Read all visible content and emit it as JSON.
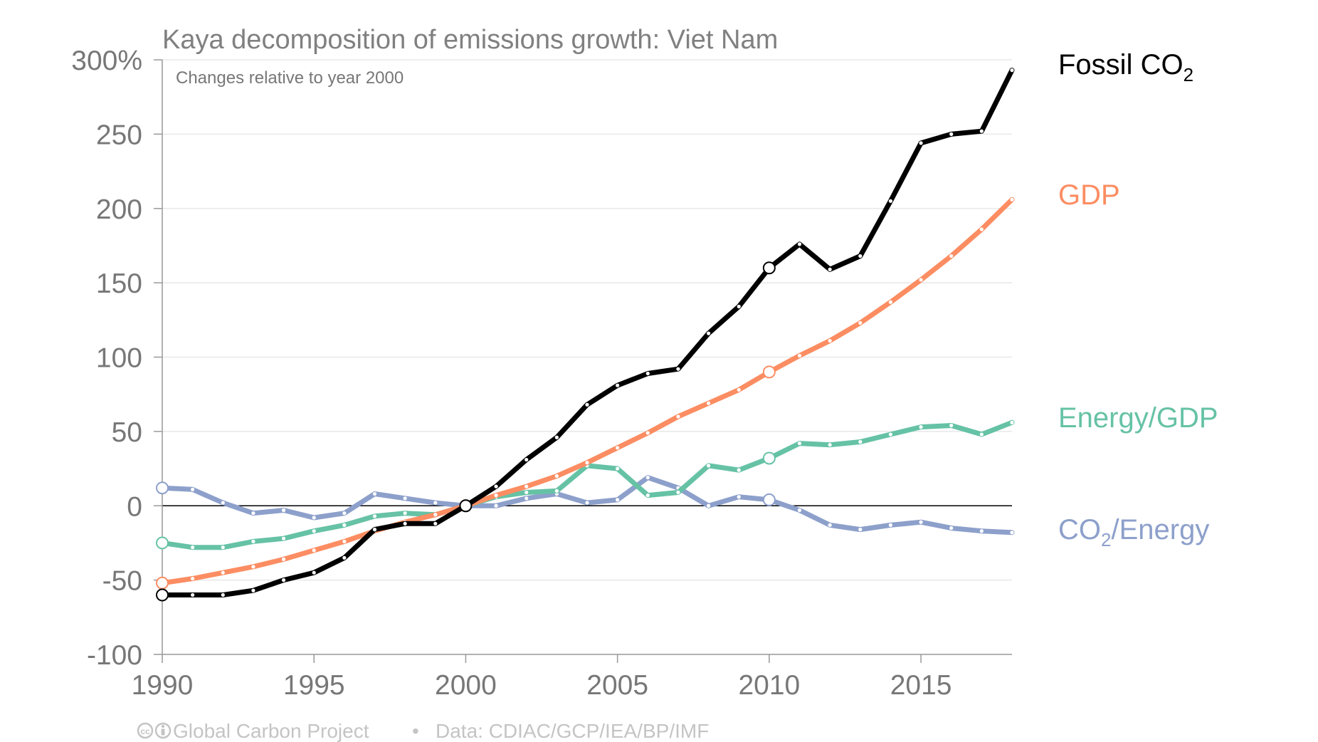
{
  "chart_data": {
    "type": "line",
    "title": "Kaya decomposition of emissions growth: Viet Nam",
    "subtitle": "Changes relative to year 2000",
    "xlabel": "",
    "ylabel": "",
    "x": [
      1990,
      1991,
      1992,
      1993,
      1994,
      1995,
      1996,
      1997,
      1998,
      1999,
      2000,
      2001,
      2002,
      2003,
      2004,
      2005,
      2006,
      2007,
      2008,
      2009,
      2010,
      2011,
      2012,
      2013,
      2014,
      2015,
      2016,
      2017,
      2018
    ],
    "xlim": [
      1990,
      2018
    ],
    "ylim": [
      -100,
      300
    ],
    "x_ticks": [
      "1990",
      "1995",
      "2000",
      "2005",
      "2010",
      "2015"
    ],
    "y_ticks": [
      "300%",
      "250",
      "200",
      "150",
      "100",
      "50",
      "0",
      "-50",
      "-100"
    ],
    "grid": true,
    "legend": "right, inline series labels",
    "series": [
      {
        "name": "Fossil CO",
        "name_sub": "2",
        "name_after": "",
        "color": "#000000",
        "values": [
          -60,
          -60,
          -60,
          -57,
          -50,
          -45,
          -35,
          -16,
          -12,
          -12,
          0,
          13,
          31,
          46,
          68,
          81,
          89,
          92,
          116,
          134,
          160,
          176,
          159,
          168,
          205,
          244,
          250,
          252,
          293
        ]
      },
      {
        "name": "GDP",
        "name_sub": "",
        "name_after": "",
        "color": "#fc8d62",
        "values": [
          -52,
          -49,
          -45,
          -41,
          -36,
          -30,
          -24,
          -17,
          -11,
          -6,
          0,
          7,
          13,
          20,
          29,
          39,
          49,
          60,
          69,
          78,
          90,
          101,
          111,
          123,
          137,
          152,
          168,
          186,
          206
        ]
      },
      {
        "name": "Energy/GDP",
        "name_sub": "",
        "name_after": "",
        "color": "#66c2a5",
        "values": [
          -25,
          -28,
          -28,
          -24,
          -22,
          -17,
          -13,
          -7,
          -5,
          -6,
          0,
          6,
          9,
          10,
          27,
          25,
          7,
          9,
          27,
          24,
          32,
          42,
          41,
          43,
          48,
          53,
          54,
          48,
          56
        ]
      },
      {
        "name": "CO",
        "name_sub": "2",
        "name_after": "/Energy",
        "color": "#8da0cb",
        "values": [
          12,
          11,
          2,
          -5,
          -3,
          -8,
          -5,
          8,
          5,
          2,
          0,
          0,
          5,
          8,
          2,
          4,
          19,
          12,
          0,
          6,
          4,
          -3,
          -13,
          -16,
          -13,
          -11,
          -15,
          -17,
          -18
        ]
      }
    ],
    "hollow_marker_years": [
      1990,
      2000,
      2010
    ]
  },
  "footer": {
    "cc_icon": "creative-commons-icon",
    "attribution_icon": "attribution-icon",
    "project": "Global Carbon Project",
    "separator": "•",
    "source": "Data: CDIAC/GCP/IEA/BP/IMF"
  }
}
